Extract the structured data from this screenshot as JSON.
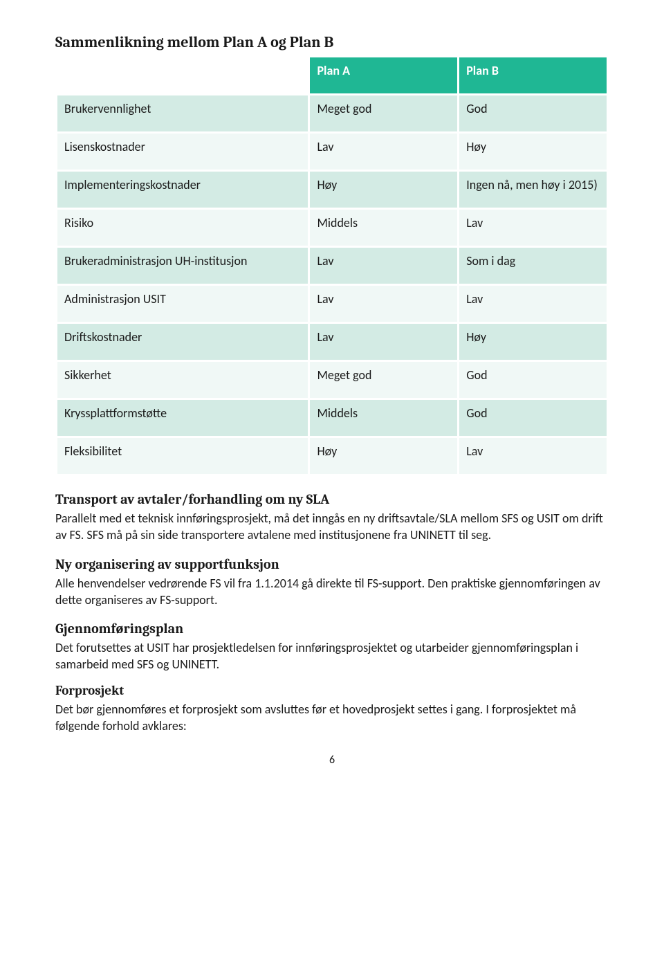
{
  "title": "Sammenlikning mellom Plan A og Plan B",
  "table": {
    "header_bg": "#1fb794",
    "header_fg": "#ffffff",
    "row_even_bg": "#d3ebe4",
    "row_odd_bg": "#f0f8f6",
    "columns": [
      "",
      "Plan A",
      "Plan B"
    ],
    "rows": [
      [
        "Brukervennlighet",
        "Meget god",
        "God"
      ],
      [
        "Lisenskostnader",
        "Lav",
        "Høy"
      ],
      [
        "Implementeringskostnader",
        "Høy",
        "Ingen nå, men høy i 2015)"
      ],
      [
        "Risiko",
        "Middels",
        "Lav"
      ],
      [
        "Brukeradministrasjon UH-institusjon",
        "Lav",
        "Som i dag"
      ],
      [
        "Administrasjon USIT",
        "Lav",
        "Lav"
      ],
      [
        "Driftskostnader",
        "Lav",
        "Høy"
      ],
      [
        "Sikkerhet",
        "Meget god",
        "God"
      ],
      [
        "Kryssplattformstøtte",
        "Middels",
        "God"
      ],
      [
        "Fleksibilitet",
        "Høy",
        "Lav"
      ]
    ]
  },
  "sections": {
    "transport": {
      "heading": "Transport av avtaler/forhandling om ny SLA",
      "body": "Parallelt med et teknisk innføringsprosjekt, må det inngås en ny driftsavtale/SLA mellom SFS og USIT om drift av FS. SFS må på sin side transportere avtalene med institusjonene fra UNINETT til seg."
    },
    "support": {
      "heading": "Ny organisering av supportfunksjon",
      "body": "Alle henvendelser vedrørende FS vil fra 1.1.2014 gå direkte til FS-support. Den praktiske gjennomføringen av dette organiseres av FS-support."
    },
    "plan": {
      "heading": "Gjennomføringsplan",
      "body": "Det forutsettes at USIT har prosjektledelsen for innføringsprosjektet og utarbeider gjennomføringsplan i samarbeid med SFS og UNINETT."
    },
    "forprosjekt": {
      "heading": "Forprosjekt",
      "body": "Det bør gjennomføres et forprosjekt som avsluttes før et hovedprosjekt settes i gang. I forprosjektet må følgende forhold avklares:"
    }
  },
  "page_number": "6"
}
